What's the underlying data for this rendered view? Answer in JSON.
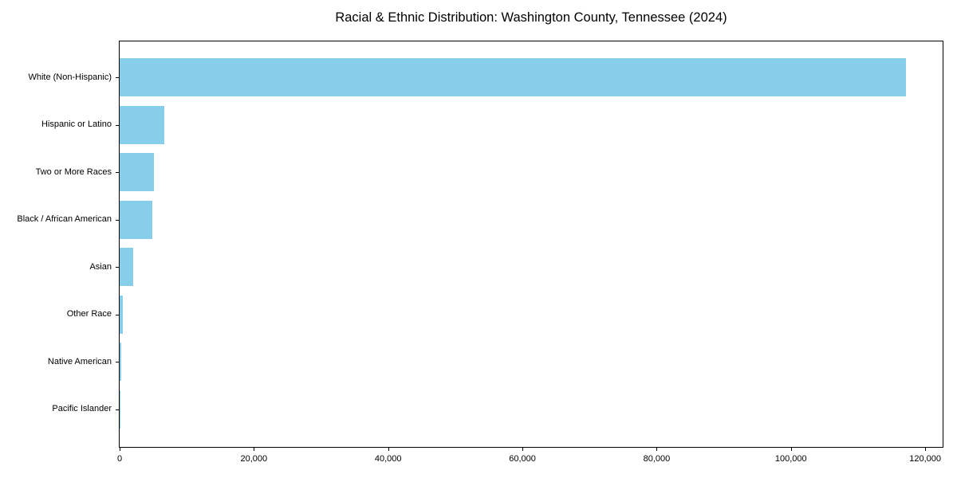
{
  "chart_data": {
    "type": "bar",
    "orientation": "horizontal",
    "title": "Racial & Ethnic Distribution: Washington County, Tennessee (2024)",
    "categories": [
      "White (Non-Hispanic)",
      "Hispanic or Latino",
      "Two or More Races",
      "Black / African American",
      "Asian",
      "Other Race",
      "Native American",
      "Pacific Islander"
    ],
    "values": [
      117100,
      6600,
      5100,
      4850,
      2000,
      480,
      200,
      60
    ],
    "xlabel": "",
    "ylabel": "",
    "xlim": [
      0,
      122600
    ],
    "x_ticks": [
      0,
      20000,
      40000,
      60000,
      80000,
      100000,
      120000
    ],
    "x_tick_labels": [
      "0",
      "20,000",
      "40,000",
      "60,000",
      "80,000",
      "100,000",
      "120,000"
    ],
    "bar_color": "#87CEEB",
    "background_color": "#ffffff",
    "axis_color": "#000000",
    "grid": false,
    "legend": null
  }
}
